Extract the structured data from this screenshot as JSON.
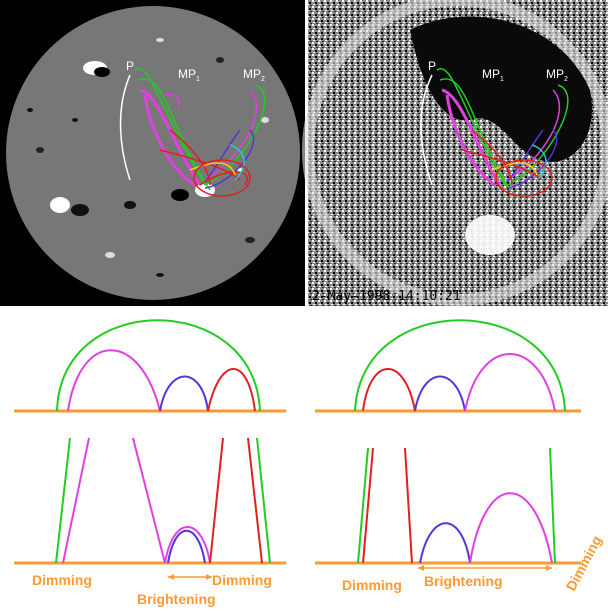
{
  "top_left_panel": {
    "labels": [
      "P",
      "MP",
      "MP"
    ],
    "subscripts": [
      "1",
      "2"
    ]
  },
  "top_right_panel": {
    "labels": [
      "P",
      "MP",
      "MP"
    ],
    "subscripts": [
      "1",
      "2"
    ],
    "timestamp": "2-May-1998  14:10:21"
  },
  "bottom_left_panel": {
    "labels": [
      "Dimming",
      "Dimming",
      "Brightening"
    ]
  },
  "bottom_right_panel": {
    "labels": [
      "Dimming",
      "Brightening",
      "Dimming"
    ]
  },
  "colors": {
    "loop_green": "#22cc22",
    "loop_magenta": "#e040e0",
    "loop_blue": "#5533dd",
    "loop_red": "#e02020",
    "baseline_orange": "#ff9a33",
    "label_orange": "#ff9a33"
  }
}
